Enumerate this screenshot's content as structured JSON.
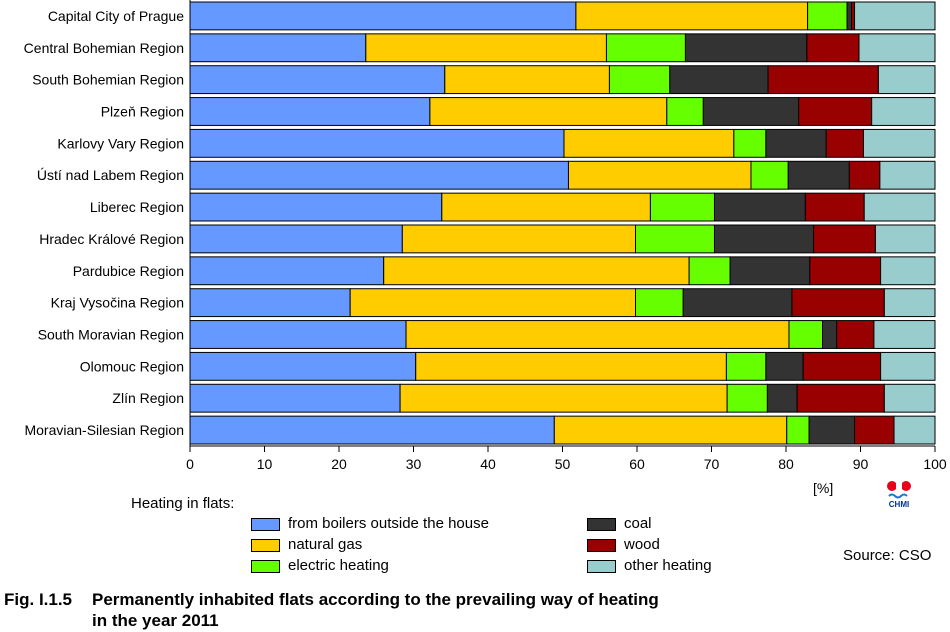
{
  "chart_data": {
    "type": "bar",
    "orientation": "horizontal",
    "stacked": true,
    "categories": [
      "Capital City of Prague",
      "Central Bohemian Region",
      "South Bohemian Region",
      "Plzeň Region",
      "Karlovy Vary Region",
      "Ústí nad Labem Region",
      "Liberec Region",
      "Hradec Králové Region",
      "Pardubice Region",
      "Kraj Vysočina Region",
      "South Moravian Region",
      "Olomouc Region",
      "Zlín Region",
      "Moravian-Silesian Region"
    ],
    "series": [
      {
        "name": "from boilers outside the house",
        "color": "#6699ff",
        "values": [
          51.8,
          23.6,
          34.2,
          32.2,
          50.2,
          50.8,
          33.8,
          28.5,
          26.0,
          21.5,
          29.0,
          30.3,
          28.2,
          48.9
        ]
      },
      {
        "name": "natural gas",
        "color": "#ffcc00",
        "values": [
          31.1,
          32.3,
          22.1,
          31.8,
          22.8,
          24.5,
          28.0,
          31.3,
          41.0,
          38.3,
          51.4,
          41.7,
          43.9,
          31.2
        ]
      },
      {
        "name": "electric heating",
        "color": "#66ff00",
        "values": [
          5.3,
          10.6,
          8.1,
          4.9,
          4.3,
          5.0,
          8.6,
          10.6,
          5.5,
          6.4,
          4.5,
          5.3,
          5.4,
          3.0
        ]
      },
      {
        "name": "coal",
        "color": "#333333",
        "values": [
          0.6,
          16.3,
          13.2,
          12.8,
          8.1,
          8.2,
          12.2,
          13.3,
          10.7,
          14.6,
          1.9,
          5.0,
          4.0,
          6.1
        ]
      },
      {
        "name": "wood",
        "color": "#990000",
        "values": [
          0.4,
          7.0,
          14.8,
          9.8,
          5.0,
          4.1,
          7.9,
          8.3,
          9.5,
          12.4,
          5.0,
          10.4,
          11.7,
          5.3
        ]
      },
      {
        "name": "other heating",
        "color": "#99cccc",
        "values": [
          10.8,
          10.2,
          7.6,
          8.5,
          9.6,
          7.4,
          9.5,
          8.0,
          7.3,
          6.8,
          8.2,
          7.3,
          6.8,
          5.5
        ]
      }
    ],
    "xlim": [
      0,
      100
    ],
    "xticks": [
      0,
      10,
      20,
      30,
      40,
      50,
      60,
      70,
      80,
      90,
      100
    ],
    "xlabel": "[%]",
    "title": "",
    "legend_title": "Heating in flats:",
    "legend_placement": "bottom"
  },
  "source": "Source: CSO",
  "logo_text": "CHMI",
  "caption": {
    "number": "Fig. I.1.5",
    "line1": "Permanently inhabited flats according to the prevailing way of heating",
    "line2": "in the year 2011"
  }
}
